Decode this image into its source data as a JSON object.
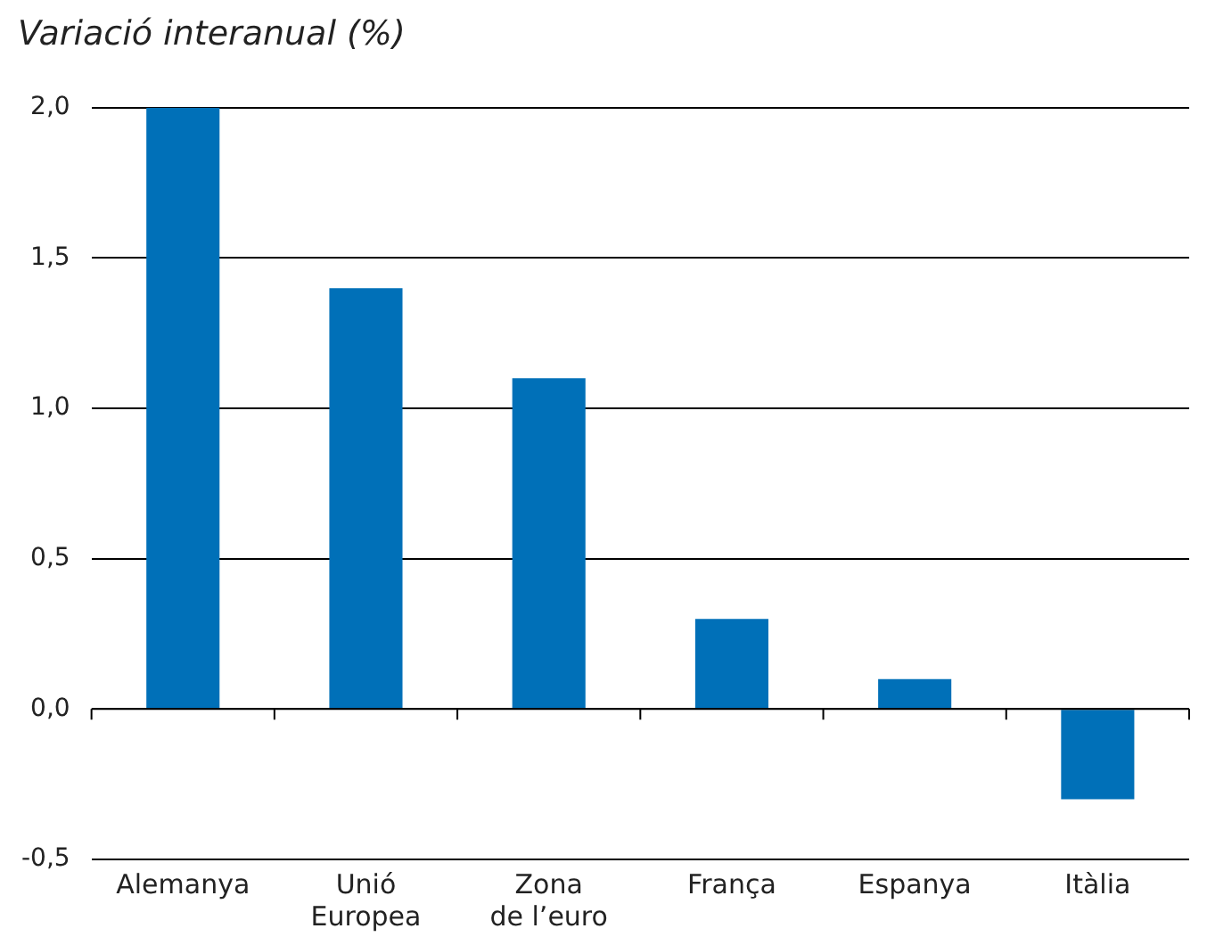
{
  "chart_data": {
    "type": "bar",
    "title": "Variació interanual (%)",
    "categories": [
      "Alemanya",
      "Unió Europea",
      "Zona de l’euro",
      "França",
      "Espanya",
      "Itàlia"
    ],
    "values": [
      2.0,
      1.4,
      1.1,
      0.3,
      0.1,
      -0.3
    ],
    "color": "#0070b8",
    "ylim": [
      -0.5,
      2.0
    ],
    "yticks": [
      {
        "value": -0.5,
        "label": "-0,5"
      },
      {
        "value": 0,
        "label": "0,0"
      },
      {
        "value": 0.5,
        "label": "0,5"
      },
      {
        "value": 1,
        "label": "1,0"
      },
      {
        "value": 1.5,
        "label": "1,5"
      },
      {
        "value": 2,
        "label": "2,0"
      }
    ],
    "grid": "y",
    "legend": false
  }
}
